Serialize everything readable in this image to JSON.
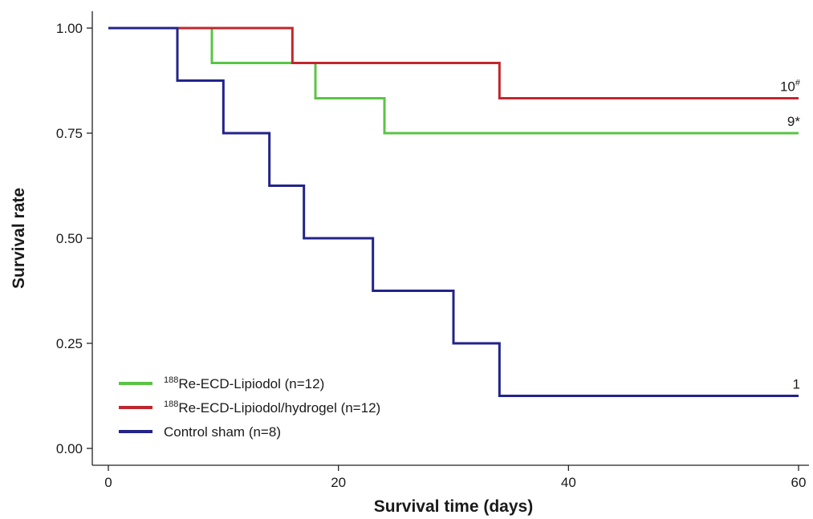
{
  "chart_data": {
    "type": "line",
    "subtype": "kaplan-meier step",
    "xlabel": "Survival time (days)",
    "ylabel": "Survival rate",
    "xlim": [
      0,
      60
    ],
    "ylim": [
      0,
      1
    ],
    "x_ticks": [
      0,
      20,
      40,
      60
    ],
    "x_tick_labels": [
      "0",
      "20",
      "40",
      "60"
    ],
    "y_ticks": [
      0,
      0.25,
      0.5,
      0.75,
      1.0
    ],
    "y_tick_labels": [
      "0.00",
      "0.25",
      "0.50",
      "0.75",
      "1.00"
    ],
    "grid": false,
    "legend_position": "bottom-left",
    "series": [
      {
        "name_sup": "188",
        "name_rest": "Re-ECD-Lipiodol (n=12)",
        "color": "#5ac445",
        "end_label": "9*",
        "steps": [
          {
            "x": 0,
            "y": 1.0
          },
          {
            "x": 9,
            "y": 0.917
          },
          {
            "x": 18,
            "y": 0.833
          },
          {
            "x": 24,
            "y": 0.75
          },
          {
            "x": 60,
            "y": 0.75
          }
        ]
      },
      {
        "name_sup": "188",
        "name_rest": "Re-ECD-Lipiodol/hydrogel (n=12)",
        "color": "#c0272d",
        "end_label_main": "10",
        "end_label_sup": "#",
        "steps": [
          {
            "x": 0,
            "y": 1.0
          },
          {
            "x": 16,
            "y": 0.917
          },
          {
            "x": 34,
            "y": 0.833
          },
          {
            "x": 60,
            "y": 0.833
          }
        ]
      },
      {
        "name_sup": "",
        "name_rest": "Control sham (n=8)",
        "color": "#23238a",
        "end_label": "1",
        "steps": [
          {
            "x": 0,
            "y": 1.0
          },
          {
            "x": 6,
            "y": 0.875
          },
          {
            "x": 10,
            "y": 0.75
          },
          {
            "x": 14,
            "y": 0.625
          },
          {
            "x": 17,
            "y": 0.5
          },
          {
            "x": 23,
            "y": 0.375
          },
          {
            "x": 30,
            "y": 0.25
          },
          {
            "x": 34,
            "y": 0.125
          },
          {
            "x": 60,
            "y": 0.125
          }
        ]
      }
    ]
  }
}
